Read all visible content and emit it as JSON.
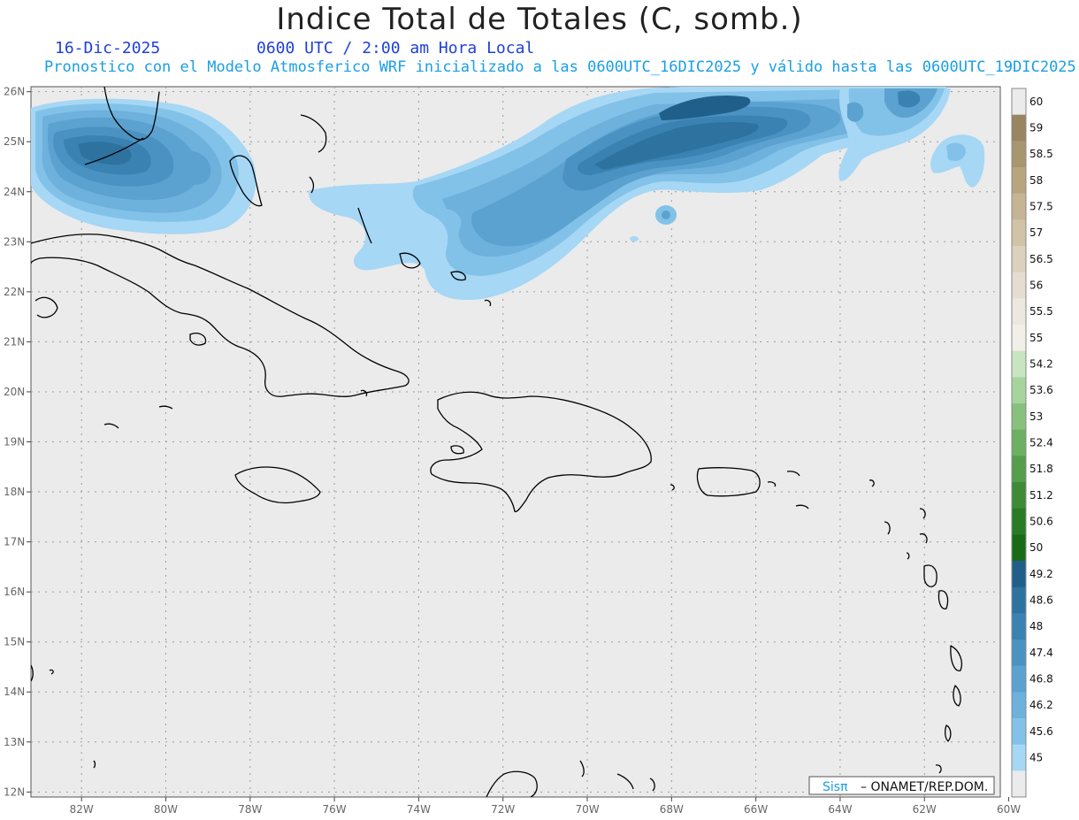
{
  "header": {
    "title": "Indice Total de Totales (C, somb.)",
    "date": "16-Dic-2025",
    "time": "0600 UTC / 2:00 am Hora Local",
    "description": "Pronostico con el Modelo Atmosferico WRF inicializado a las 0600UTC_16DIC2025 y válido hasta las  0600UTC_19DIC2025"
  },
  "map": {
    "lon_range": [
      -83.2,
      -60.2
    ],
    "lat_range": [
      11.9,
      26.1
    ],
    "lon_ticks": [
      -82,
      -80,
      -78,
      -76,
      -74,
      -72,
      -70,
      -68,
      -66,
      -64,
      -62,
      -60
    ],
    "lon_tick_labels": [
      "82W",
      "80W",
      "78W",
      "76W",
      "74W",
      "72W",
      "70W",
      "68W",
      "66W",
      "64W",
      "62W",
      "60W"
    ],
    "lat_ticks": [
      26,
      25,
      24,
      23,
      22,
      21,
      20,
      19,
      18,
      17,
      16,
      15,
      14,
      13,
      12
    ],
    "lat_tick_labels": [
      "26N",
      "25N",
      "24N",
      "23N",
      "22N",
      "21N",
      "20N",
      "19N",
      "18N",
      "17N",
      "16N",
      "15N",
      "14N",
      "13N",
      "12N"
    ],
    "grid": true,
    "background_color": "#ebebeb",
    "coastline_color": "#000000"
  },
  "colorbar": {
    "labels": [
      "60",
      "59",
      "58.5",
      "58",
      "57.5",
      "57",
      "56.5",
      "56",
      "55.5",
      "55",
      "54.2",
      "53.6",
      "53",
      "52.4",
      "51.8",
      "51.2",
      "50.6",
      "50",
      "49.2",
      "48.6",
      "48",
      "47.4",
      "46.8",
      "46.2",
      "45.6",
      "45"
    ],
    "colors": [
      "#ebebeb",
      "#9a8562",
      "#a89670",
      "#b8a580",
      "#c6b494",
      "#d1c3a8",
      "#dcd1bd",
      "#e5ddd0",
      "#ece7df",
      "#f2efe9",
      "#c8e5c2",
      "#a7d49d",
      "#88c17d",
      "#6db062",
      "#549e4c",
      "#3e8a37",
      "#2b7a25",
      "#1b6a18",
      "#1f5f8a",
      "#2e72a0",
      "#3a82b2",
      "#4a92c2",
      "#5ba2d0",
      "#6db1dc",
      "#82c2e8",
      "#a6d7f5",
      "#ebebeb"
    ]
  },
  "credit": {
    "brand": "Sisπ",
    "org": "– ONAMET/REP.DOM."
  }
}
